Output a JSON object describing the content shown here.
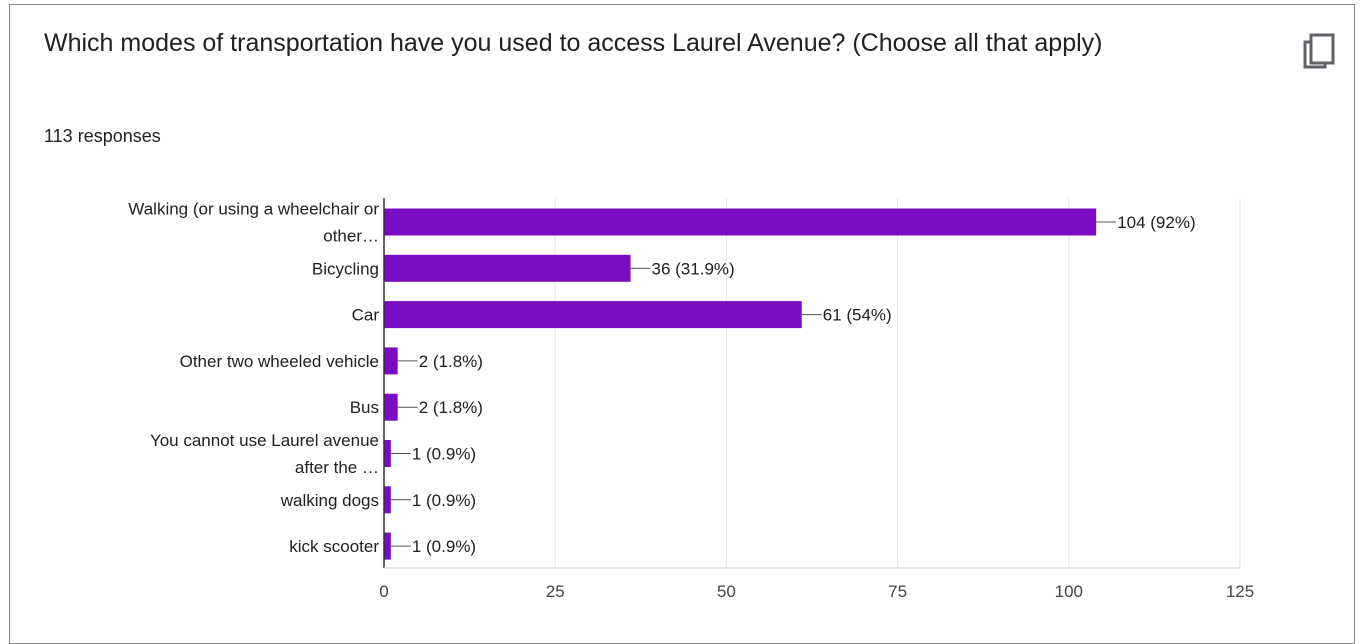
{
  "question": {
    "title": "Which modes of transportation have you used to access Laurel Avenue? (Choose all that apply)",
    "responses": "113 responses"
  },
  "toolbar": {
    "copy_icon": "copy-icon"
  },
  "colors": {
    "bar": "#7b0cc4",
    "grid": "#e6e6e6",
    "axis": "#333333",
    "text": "#202124",
    "tick_text": "#444444"
  },
  "chart_data": {
    "type": "bar",
    "orientation": "horizontal",
    "categories": [
      [
        "Walking (or using a wheelchair or",
        "other…"
      ],
      [
        "Bicycling"
      ],
      [
        "Car"
      ],
      [
        "Other two wheeled vehicle"
      ],
      [
        "Bus"
      ],
      [
        "You cannot use Laurel avenue",
        "after the …"
      ],
      [
        "walking dogs"
      ],
      [
        "kick scooter"
      ]
    ],
    "values": [
      104,
      36,
      61,
      2,
      2,
      1,
      1,
      1
    ],
    "data_labels": [
      "104 (92%)",
      "36 (31.9%)",
      "61 (54%)",
      "2 (1.8%)",
      "2 (1.8%)",
      "1 (0.9%)",
      "1 (0.9%)",
      "1 (0.9%)"
    ],
    "xlim": [
      0,
      125
    ],
    "xticks": [
      "0",
      "25",
      "50",
      "75",
      "100",
      "125"
    ],
    "xtick_values": [
      0,
      25,
      50,
      75,
      100,
      125
    ],
    "grid": true,
    "legend": "none"
  }
}
